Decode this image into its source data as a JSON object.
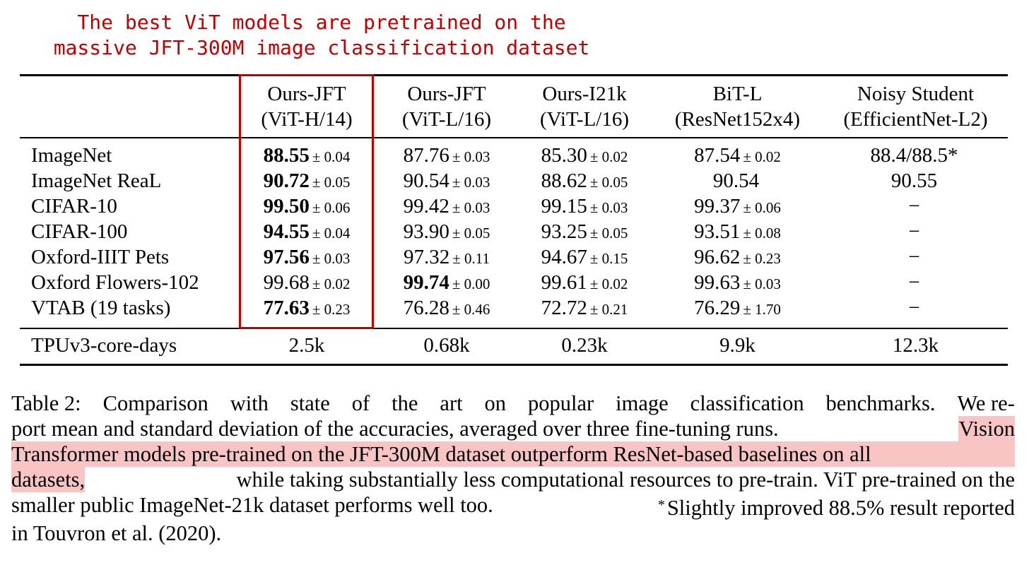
{
  "annotation": {
    "line1": "The best ViT models are pretrained on the",
    "line2": "massive JFT-300M image classification dataset",
    "color": "#c00000"
  },
  "table": {
    "columns": [
      {
        "line1": "Ours-JFT",
        "line2": "(ViT-H/14)"
      },
      {
        "line1": "Ours-JFT",
        "line2": "(ViT-L/16)"
      },
      {
        "line1": "Ours-I21k",
        "line2": "(ViT-L/16)"
      },
      {
        "line1": "BiT-L",
        "line2": "(ResNet152x4)"
      },
      {
        "line1": "Noisy Student",
        "line2": "(EfficientNet-L2)"
      }
    ],
    "rows": [
      {
        "label": "ImageNet",
        "cells": [
          {
            "mean": "88.55",
            "std": "± 0.04"
          },
          {
            "mean": "87.76",
            "std": "± 0.03"
          },
          {
            "mean": "85.30",
            "std": "± 0.02"
          },
          {
            "mean": "87.54",
            "std": "± 0.02"
          },
          {
            "mean": "88.4/88.5*",
            "std": ""
          }
        ]
      },
      {
        "label": "ImageNet ReaL",
        "cells": [
          {
            "mean": "90.72",
            "std": "± 0.05"
          },
          {
            "mean": "90.54",
            "std": "± 0.03"
          },
          {
            "mean": "88.62",
            "std": "± 0.05"
          },
          {
            "mean": "90.54",
            "std": ""
          },
          {
            "mean": "90.55",
            "std": ""
          }
        ]
      },
      {
        "label": "CIFAR-10",
        "cells": [
          {
            "mean": "99.50",
            "std": "± 0.06"
          },
          {
            "mean": "99.42",
            "std": "± 0.03"
          },
          {
            "mean": "99.15",
            "std": "± 0.03"
          },
          {
            "mean": "99.37",
            "std": "± 0.06"
          },
          {
            "mean": "−",
            "std": ""
          }
        ]
      },
      {
        "label": "CIFAR-100",
        "cells": [
          {
            "mean": "94.55",
            "std": "± 0.04"
          },
          {
            "mean": "93.90",
            "std": "± 0.05"
          },
          {
            "mean": "93.25",
            "std": "± 0.05"
          },
          {
            "mean": "93.51",
            "std": "± 0.08"
          },
          {
            "mean": "−",
            "std": ""
          }
        ]
      },
      {
        "label": "Oxford-IIIT Pets",
        "cells": [
          {
            "mean": "97.56",
            "std": "± 0.03"
          },
          {
            "mean": "97.32",
            "std": "± 0.11"
          },
          {
            "mean": "94.67",
            "std": "± 0.15"
          },
          {
            "mean": "96.62",
            "std": "± 0.23"
          },
          {
            "mean": "−",
            "std": ""
          }
        ]
      },
      {
        "label": "Oxford Flowers-102",
        "cells": [
          {
            "mean": "99.68",
            "std": "± 0.02"
          },
          {
            "mean": "99.74",
            "std": "± 0.00"
          },
          {
            "mean": "99.61",
            "std": "± 0.02"
          },
          {
            "mean": "99.63",
            "std": "± 0.03"
          },
          {
            "mean": "−",
            "std": ""
          }
        ]
      },
      {
        "label": "VTAB (19 tasks)",
        "cells": [
          {
            "mean": "77.63",
            "std": "± 0.23"
          },
          {
            "mean": "76.28",
            "std": "± 0.46"
          },
          {
            "mean": "72.72",
            "std": "± 0.21"
          },
          {
            "mean": "76.29",
            "std": "± 1.70"
          },
          {
            "mean": "−",
            "std": ""
          }
        ]
      }
    ],
    "compute": {
      "label": "TPUv3-core-days",
      "values": [
        "2.5k",
        "0.68k",
        "0.23k",
        "9.9k",
        "12.3k"
      ]
    }
  },
  "caption": {
    "l1": [
      "Table 2:",
      "Comparison",
      "with",
      "state",
      "of",
      "the",
      "art",
      "on",
      "popular",
      "image",
      "classification",
      "benchmarks.",
      "We re-"
    ],
    "l2a": "port mean and standard deviation of the accuracies, averaged over three fine-tuning runs.",
    "l2b": "Vision",
    "l3": "Transformer models pre-trained on the JFT-300M dataset outperform ResNet-based baselines on all",
    "l4a": "datasets,",
    "l4b": "while taking substantially less computational resources to pre-train. ViT pre-trained on the",
    "l5a": "smaller public ImageNet-21k dataset performs well too.",
    "l5star": "*",
    "l5b": "Slightly improved 88.5% result reported",
    "l6": "in Touvron et al. (2020).",
    "highlight_color": "#f8c4c4"
  }
}
